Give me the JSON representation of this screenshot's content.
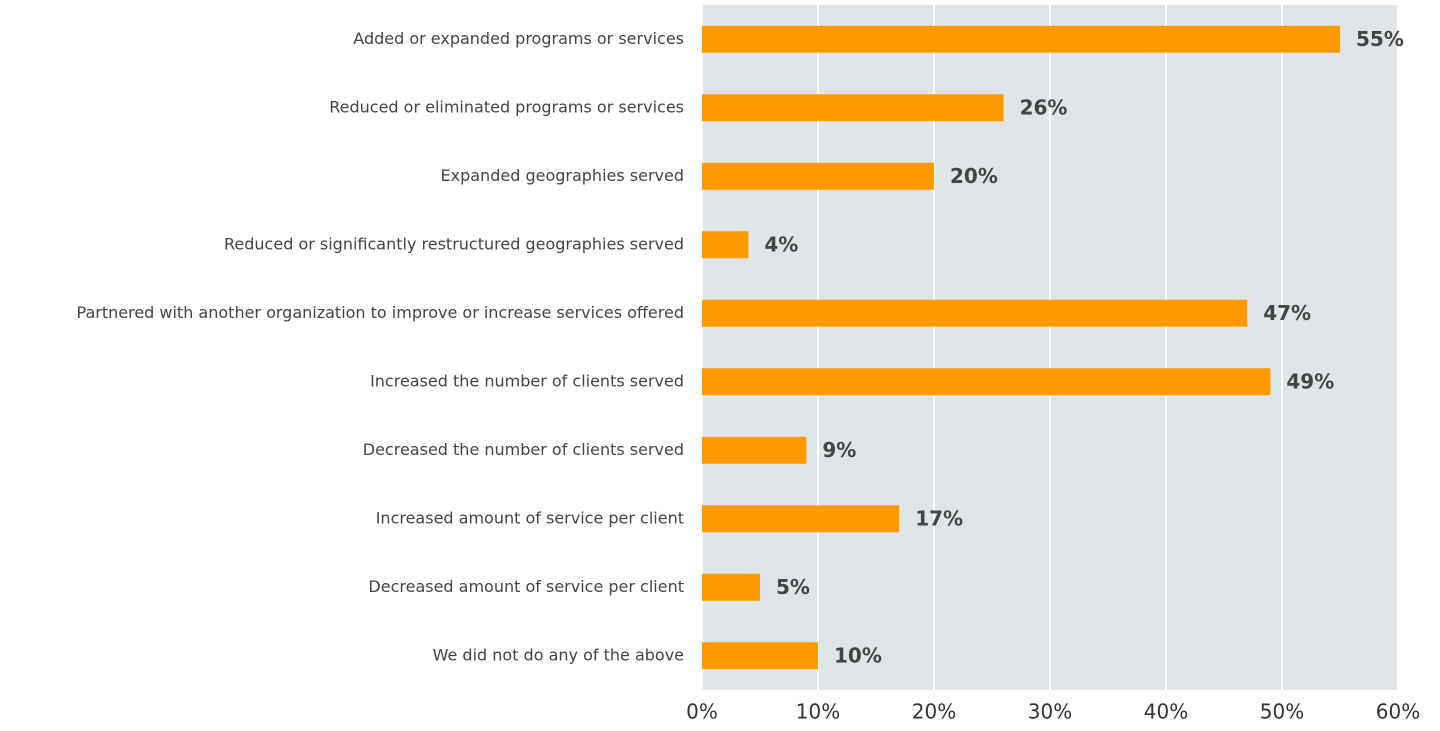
{
  "chart_data": {
    "type": "bar",
    "orientation": "horizontal",
    "categories": [
      "Added or expanded programs or services",
      "Reduced or eliminated programs or services",
      "Expanded geographies served",
      "Reduced or significantly restructured geographies served",
      "Partnered with another organization to improve or increase services offered",
      "Increased the number of clients served",
      "Decreased the number of clients served",
      "Increased amount of service per client",
      "Decreased amount of service per client",
      "We did not do any of the above"
    ],
    "values": [
      55,
      26,
      20,
      4,
      47,
      49,
      9,
      17,
      5,
      10
    ],
    "value_labels": [
      "55%",
      "26%",
      "20%",
      "4%",
      "47%",
      "49%",
      "9%",
      "17%",
      "5%",
      "10%"
    ],
    "color": "#ff9900",
    "xlim": [
      0,
      60
    ],
    "xticks": [
      {
        "value": 0,
        "label": "0%"
      },
      {
        "value": 10,
        "label": "10%"
      },
      {
        "value": 20,
        "label": "20%"
      },
      {
        "value": 30,
        "label": "30%"
      },
      {
        "value": 40,
        "label": "40%"
      },
      {
        "value": 50,
        "label": "50%"
      },
      {
        "value": 60,
        "label": "60%"
      }
    ],
    "grid": true
  }
}
